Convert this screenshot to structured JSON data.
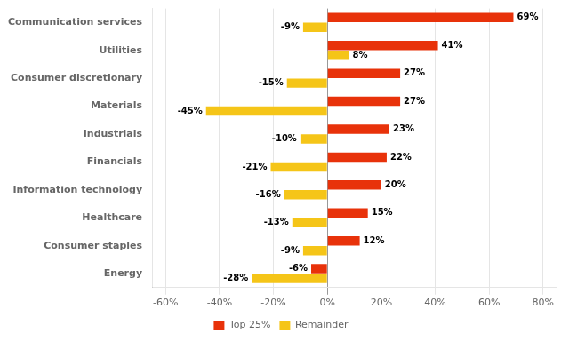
{
  "chart_data": {
    "type": "bar",
    "orientation": "horizontal",
    "categories": [
      "Energy",
      "Consumer staples",
      "Healthcare",
      "Information technology",
      "Financials",
      "Industrials",
      "Materials",
      "Consumer discretionary",
      "Utilities",
      "Communication services"
    ],
    "series": [
      {
        "name": "Top 25%",
        "color": "#E8320A",
        "values": [
          -6,
          12,
          15,
          20,
          22,
          23,
          27,
          27,
          41,
          69
        ],
        "value_labels": [
          "-6%",
          "12%",
          "15%",
          "20%",
          "22%",
          "23%",
          "27%",
          "27%",
          "41%",
          "69%"
        ]
      },
      {
        "name": "Remainder",
        "color": "#F5C518",
        "values": [
          -28,
          -9,
          -13,
          -16,
          -21,
          -10,
          -45,
          -15,
          8,
          -9
        ],
        "value_labels": [
          "-28%",
          "-9%",
          "-13%",
          "-16%",
          "-21%",
          "-10%",
          "-45%",
          "-15%",
          "8%",
          "-9%"
        ]
      }
    ],
    "xlim": [
      -65,
      85
    ],
    "xticks": [
      {
        "value": -60,
        "label": "-60%"
      },
      {
        "value": -40,
        "label": "-40%"
      },
      {
        "value": -20,
        "label": "-20%"
      },
      {
        "value": 0,
        "label": "0%"
      },
      {
        "value": 20,
        "label": "20%"
      },
      {
        "value": 40,
        "label": "40%"
      },
      {
        "value": 60,
        "label": "60%"
      },
      {
        "value": 80,
        "label": "80%"
      }
    ],
    "grid": true,
    "legend": "bottom",
    "data_labels": true
  }
}
